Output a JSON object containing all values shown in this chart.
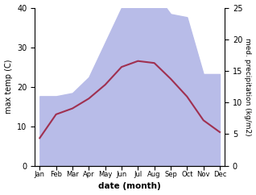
{
  "months": [
    "Jan",
    "Feb",
    "Mar",
    "Apr",
    "May",
    "Jun",
    "Jul",
    "Aug",
    "Sep",
    "Oct",
    "Nov",
    "Dec"
  ],
  "temperature": [
    7.0,
    13.0,
    14.5,
    17.0,
    20.5,
    25.0,
    26.5,
    26.0,
    22.0,
    17.5,
    11.5,
    8.5
  ],
  "precipitation": [
    11.0,
    11.0,
    11.5,
    14.0,
    19.5,
    25.0,
    27.5,
    27.5,
    24.0,
    23.5,
    14.5,
    14.5
  ],
  "temp_color": "#a03050",
  "precip_fill_color": "#b8bce8",
  "ylabel_left": "max temp (C)",
  "ylabel_right": "med. precipitation (kg/m2)",
  "xlabel": "date (month)",
  "ylim_left": [
    0,
    40
  ],
  "ylim_right": [
    0,
    25
  ],
  "yticks_left": [
    0,
    10,
    20,
    30,
    40
  ],
  "yticks_right": [
    0,
    5,
    10,
    15,
    20,
    25
  ],
  "precip_scale_factor": 1.6,
  "background_color": "#ffffff"
}
